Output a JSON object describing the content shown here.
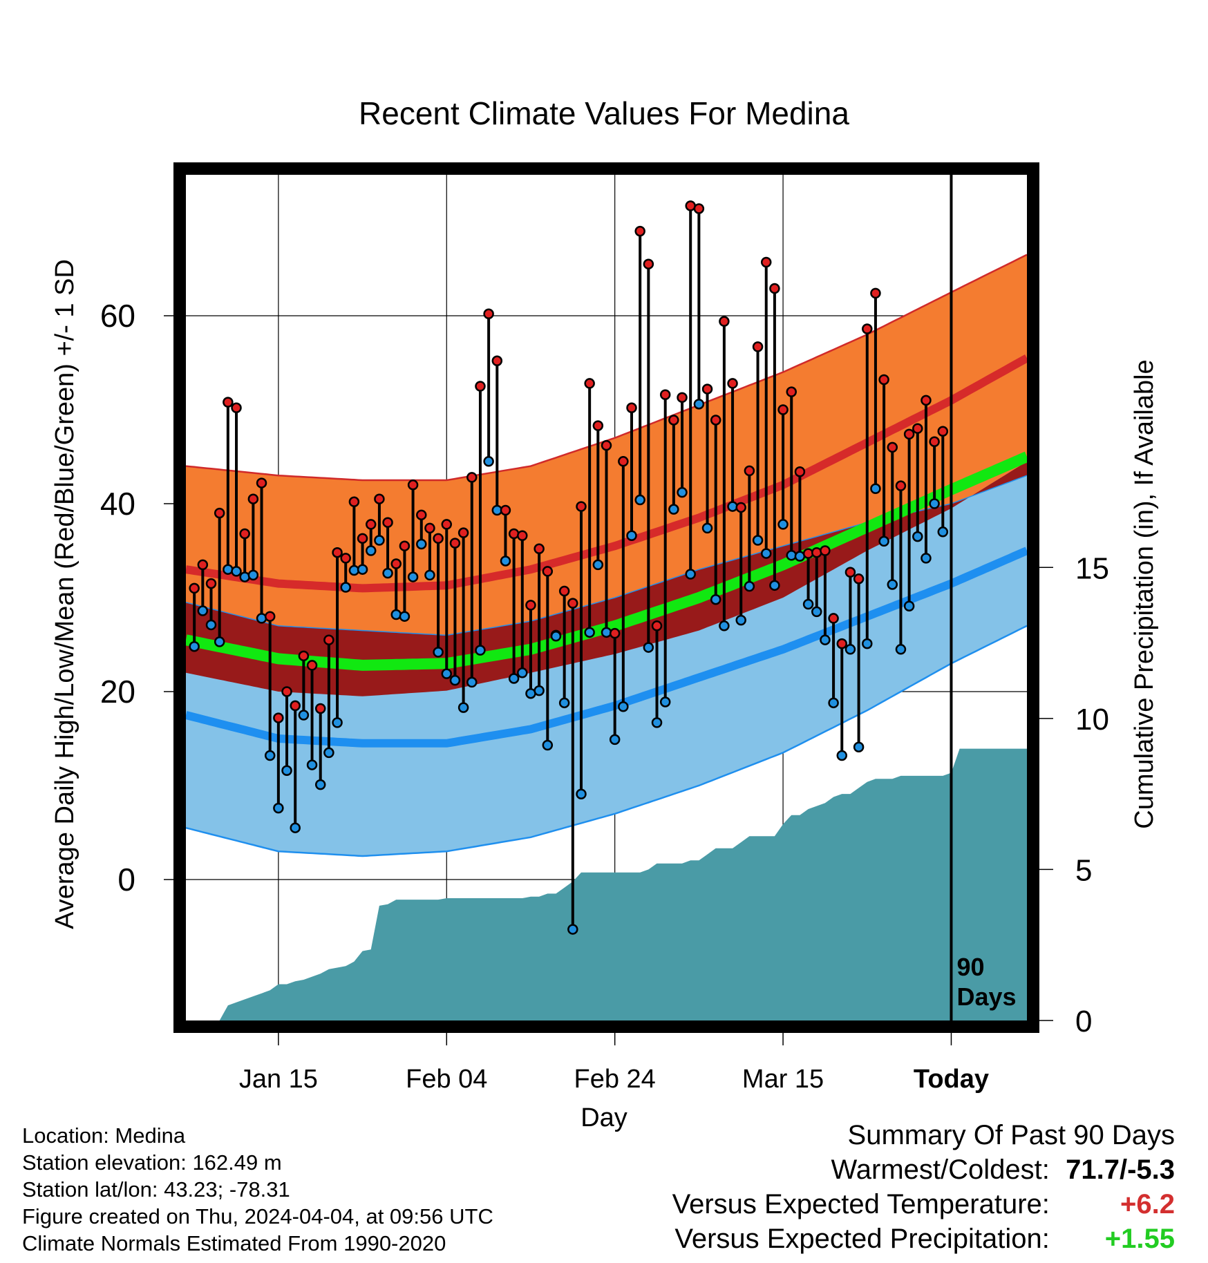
{
  "chart_data": {
    "type": "line",
    "title": "Recent Climate Values For Medina",
    "xlabel": "Day",
    "ylabel": "Average Daily High/Low/Mean (Red/Blue/Green) +/- 1 SD",
    "y2label": "Cumulative Precipitation (in), If Available",
    "x_tick_labels": [
      "Jan 15",
      "Feb 04",
      "Feb 24",
      "Mar 15",
      "Today"
    ],
    "x_tick_days": [
      10,
      30,
      50,
      70,
      90
    ],
    "y_ticks": [
      0,
      20,
      40,
      60
    ],
    "ylim": [
      -15,
      75
    ],
    "y2_ticks": [
      0,
      5,
      10,
      15
    ],
    "y2lim": [
      0,
      28
    ],
    "xlim": [
      -1,
      99
    ],
    "grid": true,
    "marker_label": "90 Days",
    "normals": {
      "day": [
        -1,
        10,
        20,
        30,
        40,
        50,
        60,
        70,
        80,
        90,
        99
      ],
      "high_mean": [
        33,
        31.5,
        31,
        31.3,
        33,
        35.5,
        38.5,
        42,
        46.5,
        51,
        55.5
      ],
      "high_upper": [
        44,
        43,
        42.5,
        42.5,
        44,
        47,
        50.5,
        54,
        58,
        62.5,
        66.5
      ],
      "low_mean": [
        17.5,
        15,
        14.5,
        14.5,
        16,
        18.5,
        21.5,
        24.5,
        28,
        31.5,
        35
      ],
      "low_lower": [
        5.5,
        3,
        2.5,
        3,
        4.5,
        7,
        10,
        13.5,
        18,
        23,
        27
      ],
      "mean_mean": [
        25.5,
        23.5,
        22.8,
        23,
        24.5,
        27,
        30,
        33.5,
        37.5,
        41.5,
        45
      ]
    },
    "series": [
      {
        "name": "High",
        "color": "#e02020",
        "x": [
          0,
          1,
          2,
          3,
          4,
          5,
          6,
          7,
          8,
          9,
          10,
          11,
          12,
          13,
          14,
          15,
          16,
          17,
          18,
          19,
          20,
          21,
          22,
          23,
          24,
          25,
          26,
          27,
          28,
          29,
          30,
          31,
          32,
          33,
          34,
          35,
          36,
          37,
          38,
          39,
          40,
          41,
          42,
          43,
          44,
          45,
          46,
          47,
          48,
          49,
          50,
          51,
          52,
          53,
          54,
          55,
          56,
          57,
          58,
          59,
          60,
          61,
          62,
          63,
          64,
          65,
          66,
          67,
          68,
          69,
          70,
          71,
          72,
          73,
          74,
          75,
          76,
          77,
          78,
          79,
          80,
          81,
          82,
          83,
          84,
          85,
          86,
          87,
          88,
          89
        ],
        "values": [
          31,
          33.5,
          31.5,
          39,
          50.8,
          50.2,
          36.8,
          40.5,
          42.2,
          28,
          17.2,
          20,
          18.5,
          23.8,
          22.8,
          18.2,
          25.5,
          34.8,
          34.2,
          40.2,
          36.3,
          37.8,
          40.5,
          38,
          33.6,
          35.5,
          42,
          38.8,
          37.4,
          36.3,
          37.8,
          35.8,
          36.9,
          42.8,
          52.5,
          60.2,
          55.2,
          39.3,
          36.8,
          36.6,
          29.2,
          35.2,
          32.8,
          26,
          30.7,
          29.4,
          39.7,
          52.8,
          48.3,
          46.2,
          26.2,
          44.5,
          50.2,
          69,
          65.5,
          27,
          51.6,
          48.9,
          51.3,
          71.7,
          71.4,
          52.2,
          48.9,
          59.4,
          52.8,
          39.6,
          43.5,
          56.7,
          65.7,
          62.9,
          50,
          51.9,
          43.4,
          34.7,
          34.8,
          35,
          27.8,
          25.1,
          32.7,
          32,
          58.6,
          62.4,
          53.2,
          46,
          41.9,
          47.4,
          48,
          51,
          46.6,
          47.7
        ]
      },
      {
        "name": "Low",
        "color": "#2090e0",
        "x": [
          0,
          1,
          2,
          3,
          4,
          5,
          6,
          7,
          8,
          9,
          10,
          11,
          12,
          13,
          14,
          15,
          16,
          17,
          18,
          19,
          20,
          21,
          22,
          23,
          24,
          25,
          26,
          27,
          28,
          29,
          30,
          31,
          32,
          33,
          34,
          35,
          36,
          37,
          38,
          39,
          40,
          41,
          42,
          43,
          44,
          45,
          46,
          47,
          48,
          49,
          50,
          51,
          52,
          53,
          54,
          55,
          56,
          57,
          58,
          59,
          60,
          61,
          62,
          63,
          64,
          65,
          66,
          67,
          68,
          69,
          70,
          71,
          72,
          73,
          74,
          75,
          76,
          77,
          78,
          79,
          80,
          81,
          82,
          83,
          84,
          85,
          86,
          87,
          88,
          89
        ],
        "values": [
          24.8,
          28.6,
          27.1,
          25.3,
          33,
          32.8,
          32.2,
          32.4,
          27.8,
          13.2,
          7.6,
          11.6,
          5.5,
          17.5,
          12.2,
          10.1,
          13.5,
          16.7,
          31.1,
          32.9,
          33,
          35,
          36.1,
          32.6,
          28.2,
          28,
          32.2,
          35.7,
          32.4,
          24.2,
          21.9,
          21.2,
          18.3,
          21,
          24.4,
          44.5,
          39.3,
          33.9,
          21.4,
          22,
          19.8,
          20.1,
          14.3,
          25.9,
          18.8,
          -5.3,
          9.1,
          26.3,
          33.5,
          26.3,
          14.9,
          18.4,
          36.6,
          40.4,
          24.7,
          16.7,
          18.9,
          39.4,
          41.2,
          32.5,
          50.6,
          37.4,
          29.8,
          27,
          39.7,
          27.6,
          31.2,
          36.1,
          34.7,
          31.3,
          37.8,
          34.5,
          34.4,
          29.3,
          28.5,
          25.5,
          18.8,
          13.2,
          24.5,
          14.1,
          25.1,
          41.6,
          36,
          31.4,
          24.5,
          29.1,
          36.5,
          34.2,
          40,
          37
        ]
      }
    ],
    "precip_cumulative": {
      "x": [
        -1,
        3,
        4,
        5,
        6,
        7,
        8,
        9,
        10,
        11,
        12,
        13,
        14,
        15,
        16,
        17,
        18,
        19,
        20,
        21,
        22,
        23,
        24,
        25,
        26,
        27,
        28,
        29,
        30,
        31,
        32,
        33,
        34,
        35,
        36,
        37,
        38,
        39,
        40,
        41,
        42,
        43,
        44,
        45,
        46,
        47,
        48,
        49,
        50,
        51,
        52,
        53,
        54,
        55,
        56,
        57,
        58,
        59,
        60,
        61,
        62,
        63,
        64,
        65,
        66,
        67,
        68,
        69,
        70,
        71,
        72,
        73,
        74,
        75,
        76,
        77,
        78,
        79,
        80,
        81,
        82,
        83,
        84,
        85,
        86,
        87,
        88,
        89,
        90,
        91,
        92,
        93,
        94,
        95,
        96,
        97,
        98,
        99
      ],
      "values": [
        0,
        0,
        0.5,
        0.6,
        0.7,
        0.8,
        0.9,
        1,
        1.2,
        1.2,
        1.3,
        1.35,
        1.45,
        1.55,
        1.7,
        1.75,
        1.8,
        1.95,
        2.3,
        2.35,
        3.8,
        3.85,
        4.0,
        4.0,
        4.0,
        4.0,
        4.0,
        4.0,
        4.05,
        4.05,
        4.05,
        4.05,
        4.05,
        4.05,
        4.05,
        4.05,
        4.05,
        4.05,
        4.1,
        4.1,
        4.2,
        4.2,
        4.4,
        4.6,
        4.9,
        4.9,
        4.9,
        4.9,
        4.9,
        4.9,
        4.9,
        4.9,
        5.0,
        5.2,
        5.2,
        5.2,
        5.2,
        5.3,
        5.3,
        5.5,
        5.7,
        5.7,
        5.7,
        5.9,
        6.1,
        6.1,
        6.1,
        6.1,
        6.5,
        6.8,
        6.8,
        7.0,
        7.1,
        7.2,
        7.4,
        7.5,
        7.5,
        7.7,
        7.9,
        8.0,
        8.0,
        8.0,
        8.1,
        8.1,
        8.1,
        8.1,
        8.1,
        8.1,
        8.2,
        9.0,
        9.0,
        9.0,
        9.0,
        9.0,
        9.0,
        9.0,
        9.0,
        9.0
      ]
    }
  },
  "info": {
    "location": "Location: Medina",
    "elevation": "Station elevation: 162.49 m",
    "latlon": "Station lat/lon: 43.23; -78.31",
    "created": "Figure created on Thu, 2024-04-04, at 09:56 UTC",
    "normals": "Climate Normals Estimated From 1990-2020"
  },
  "summary": {
    "title": "Summary Of Past 90 Days",
    "warmest_label": "Warmest/Coldest:",
    "warmest_value": "71.7/-5.3",
    "temp_label": "Versus Expected Temperature:",
    "temp_value": "+6.2",
    "precip_label": "Versus Expected Precipitation:",
    "precip_value": "+1.55"
  }
}
